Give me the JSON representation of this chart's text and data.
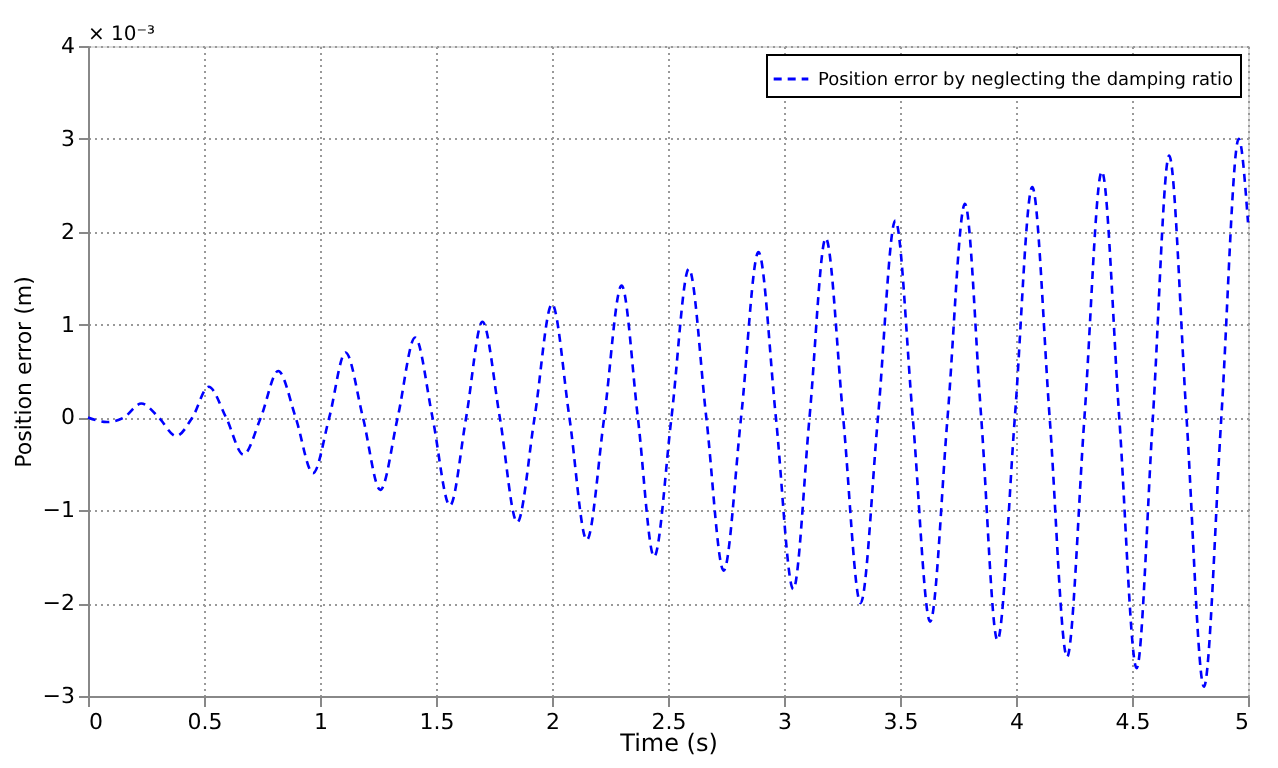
{
  "chart_data": {
    "type": "line",
    "xlabel": "Time (s)",
    "ylabel": "Position error (m)",
    "annotations": [
      "× 10⁻³"
    ],
    "x": [
      0,
      0.08,
      0.155,
      0.23,
      0.305,
      0.38,
      0.45,
      0.52,
      0.595,
      0.67,
      0.745,
      0.82,
      0.895,
      0.97,
      1.04,
      1.11,
      1.185,
      1.26,
      1.335,
      1.41,
      1.485,
      1.56,
      1.63,
      1.7,
      1.775,
      1.85,
      1.925,
      2.0,
      2.075,
      2.15,
      2.225,
      2.3,
      2.37,
      2.44,
      2.515,
      2.59,
      2.665,
      2.74,
      2.815,
      2.89,
      2.965,
      3.04,
      3.11,
      3.18,
      3.255,
      3.33,
      3.405,
      3.48,
      3.555,
      3.63,
      3.705,
      3.78,
      3.85,
      3.92,
      3.995,
      4.07,
      4.145,
      4.22,
      4.295,
      4.37,
      4.445,
      4.52,
      4.59,
      4.66,
      4.735,
      4.81,
      4.885,
      4.96,
      5.0
    ],
    "series": [
      {
        "name": "Position error by neglecting the damping ratio",
        "color": "#0000ff",
        "values": [
          0,
          -0.05,
          0,
          0.15,
          0,
          -0.2,
          0,
          0.33,
          0,
          -0.4,
          0,
          0.5,
          0,
          -0.6,
          0,
          0.7,
          0,
          -0.78,
          0,
          0.86,
          0,
          -0.95,
          0,
          1.03,
          0,
          -1.13,
          0,
          1.22,
          0,
          -1.32,
          0,
          1.42,
          0,
          -1.5,
          0,
          1.6,
          0,
          -1.65,
          0,
          1.78,
          0,
          -1.85,
          0,
          1.93,
          0,
          -2.0,
          0,
          2.12,
          0,
          -2.2,
          0,
          2.3,
          0,
          -2.4,
          0,
          2.48,
          0,
          -2.58,
          0,
          2.65,
          0,
          -2.7,
          0,
          2.82,
          0,
          -2.9,
          0,
          3.0,
          2.1
        ]
      }
    ],
    "xlim": [
      0,
      5
    ],
    "xticks": [
      0,
      0.5,
      1,
      1.5,
      2,
      2.5,
      3,
      3.5,
      4,
      4.5,
      5
    ],
    "ylim": [
      -3,
      4
    ],
    "yticks": [
      -3,
      -2,
      -1,
      0,
      1,
      2,
      3,
      4
    ],
    "grid": true,
    "legend": "top right",
    "line_style": "dashed",
    "marker": "none"
  }
}
